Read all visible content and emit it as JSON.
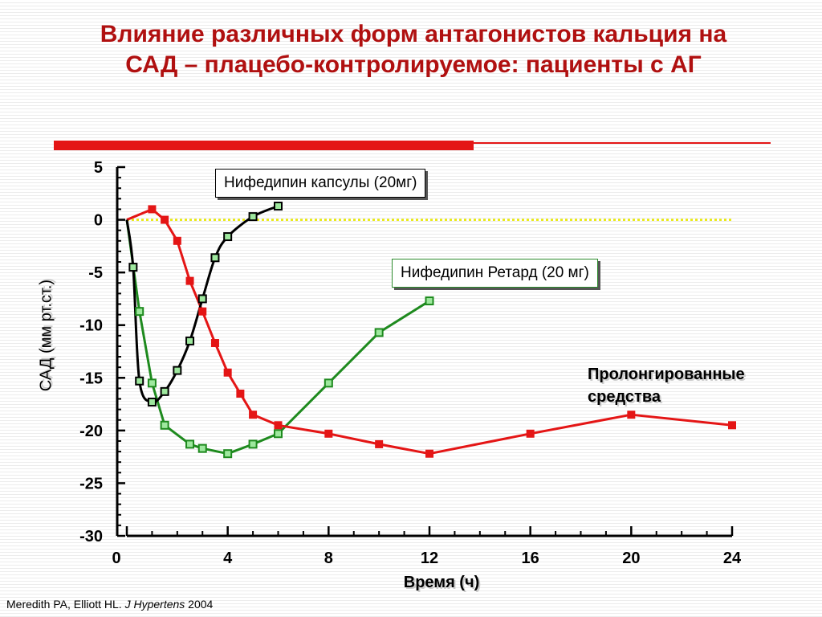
{
  "title": {
    "line1": "Влияние различных форм антагонистов кальция на",
    "line2": "САД – плацебо-контролируемое: пациенты с АГ"
  },
  "colors": {
    "title": "#b01010",
    "accent_bar": "#e41515",
    "nifedipine_capsules": "#000000",
    "nifedipine_retard": "#1e8a1e",
    "prolonged": "#e41515",
    "zero_line": "#e8e800"
  },
  "labels": {
    "capsules": "Нифедипин капсулы (20мг)",
    "retard": "Нифедипин Ретард (20 мг)",
    "prolonged_line1": "Пролонгированные",
    "prolonged_line2": "средства"
  },
  "citation": {
    "authors": "Meredith PA,  Elliott HL.",
    "journal": "J Hypertens",
    "year": "2004"
  },
  "chart_data": {
    "type": "line",
    "xlabel": "Время (ч)",
    "ylabel": "САД (мм рт.ст.)",
    "xlim": [
      0,
      24
    ],
    "ylim": [
      -30,
      5
    ],
    "xticks": [
      "0",
      "4",
      "8",
      "12",
      "16",
      "20",
      "24"
    ],
    "yticks": [
      "5",
      "0",
      "-5",
      "-10",
      "-15",
      "-20",
      "-25",
      "-30"
    ],
    "zero_reference_line": true,
    "series": [
      {
        "name": "Нифедипин капсулы (20мг)",
        "color": "#000000",
        "marker": "open-square-green",
        "x": [
          0,
          0.25,
          0.5,
          1,
          1.5,
          2,
          2.5,
          3,
          3.5,
          4,
          5,
          6
        ],
        "y": [
          0,
          -4.5,
          -15.3,
          -17.3,
          -16.3,
          -14.3,
          -11.5,
          -7.5,
          -3.6,
          -1.6,
          0.3,
          1.3
        ]
      },
      {
        "name": "Нифедипин Ретард (20 мг)",
        "color": "#1e8a1e",
        "marker": "open-square-green",
        "x": [
          0,
          0.5,
          1,
          1.5,
          2.5,
          3,
          4,
          5,
          6,
          8,
          10,
          12
        ],
        "y": [
          0,
          -8.7,
          -15.5,
          -19.5,
          -21.3,
          -21.7,
          -22.2,
          -21.3,
          -20.3,
          -15.5,
          -10.7,
          -7.7
        ]
      },
      {
        "name": "Пролонгированные средства",
        "color": "#e41515",
        "marker": "filled-square-red",
        "x": [
          0,
          1,
          1.5,
          2,
          2.5,
          3,
          3.5,
          4,
          4.5,
          5,
          6,
          8,
          10,
          12,
          16,
          20,
          24
        ],
        "y": [
          0,
          1,
          0,
          -2,
          -5.8,
          -8.7,
          -11.7,
          -14.5,
          -16.5,
          -18.5,
          -19.5,
          -20.3,
          -21.3,
          -22.2,
          -20.3,
          -18.5,
          -19.5
        ]
      }
    ]
  }
}
